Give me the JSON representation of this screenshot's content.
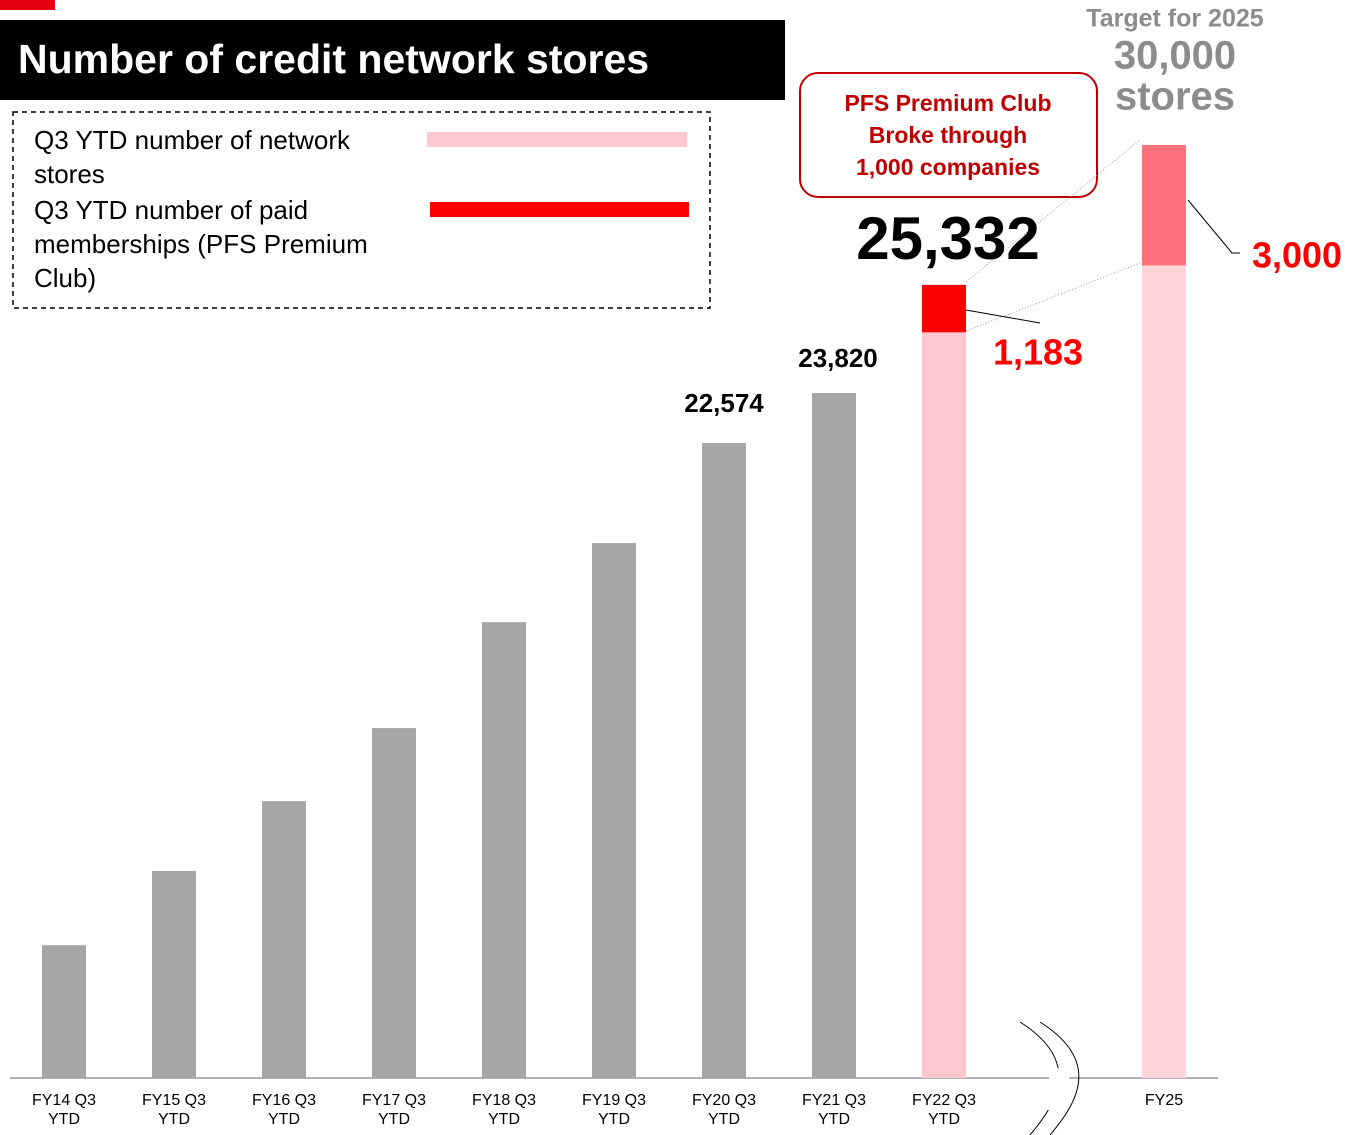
{
  "chart_data": {
    "type": "bar",
    "title": "Number of credit network stores",
    "categories": [
      "FY14 Q3 YTD",
      "FY15 Q3 YTD",
      "FY16 Q3 YTD",
      "FY17 Q3 YTD",
      "FY18 Q3 YTD",
      "FY19 Q3 YTD",
      "FY20 Q3 YTD",
      "FY21 Q3 YTD",
      "FY22 Q3 YTD",
      null,
      "FY25"
    ],
    "series": [
      {
        "name": "Q3 YTD number of network stores",
        "color": "#ffc7ce",
        "colors": [
          "#a6a6a6",
          "#a6a6a6",
          "#a6a6a6",
          "#a6a6a6",
          "#a6a6a6",
          "#a6a6a6",
          "#a6a6a6",
          "#a6a6a6",
          "#ffc7ce",
          null,
          "#ffd3d7"
        ],
        "values": [
          10060,
          11910,
          13650,
          15470,
          18110,
          20080,
          22574,
          23820,
          25332,
          null,
          27000
        ],
        "value_labels": [
          null,
          null,
          null,
          null,
          null,
          null,
          "22,574",
          "23,820",
          "25,332",
          null,
          null
        ]
      },
      {
        "name": "Q3 YTD number of paid memberships (PFS Premium Club)",
        "color": "#ff0000",
        "colors": [
          null,
          null,
          null,
          null,
          null,
          null,
          null,
          null,
          "#ff0000",
          null,
          "#ff6f7c"
        ],
        "values": [
          null,
          null,
          null,
          null,
          null,
          null,
          null,
          null,
          1183,
          null,
          3000
        ],
        "value_labels": [
          null,
          null,
          null,
          null,
          null,
          null,
          null,
          null,
          "1,183",
          null,
          "3,000"
        ]
      }
    ],
    "ylim": [
      6750,
      30125
    ],
    "annotations": {
      "callout": [
        "PFS Premium Club",
        "Broke through",
        "1,000 companies"
      ],
      "target": [
        "Target for 2025",
        "30,000",
        "stores"
      ]
    },
    "legend": "top-left"
  }
}
